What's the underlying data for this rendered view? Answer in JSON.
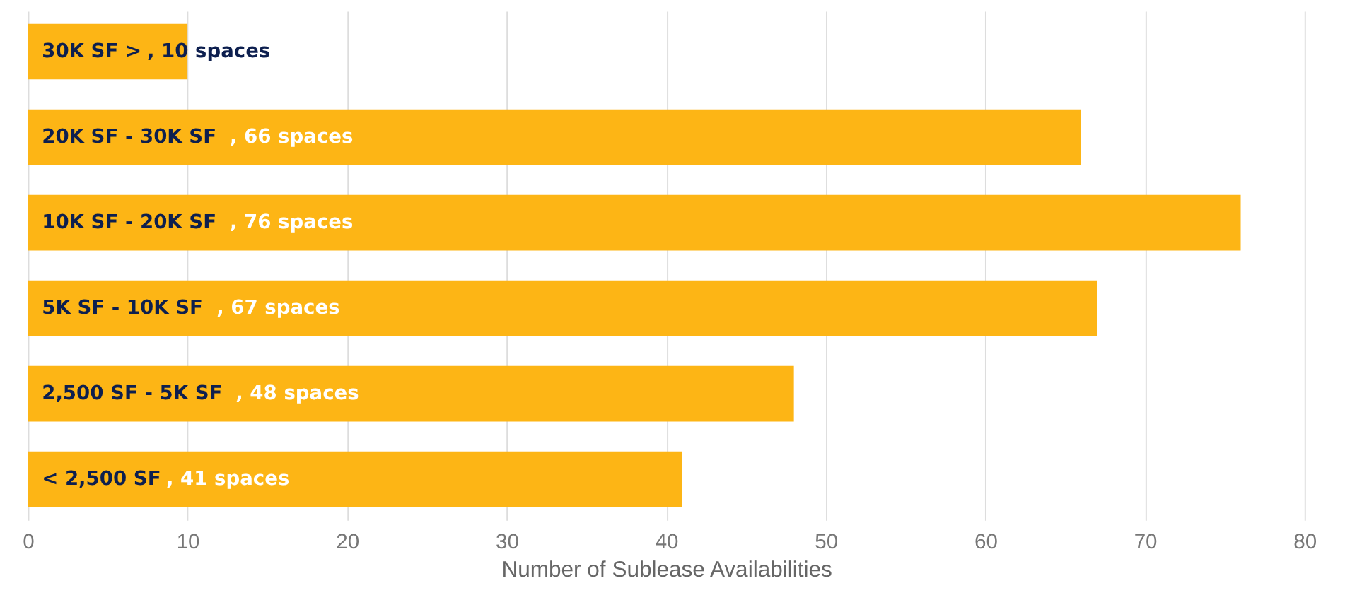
{
  "chart_data": {
    "type": "bar",
    "orientation": "horizontal",
    "xlabel": "Number of Sublease Availabilities",
    "categories": [
      "30K SF >",
      "20K SF - 30K SF",
      "10K SF - 20K SF",
      "5K SF - 10K SF",
      "2,500 SF - 5K SF",
      "< 2,500 SF"
    ],
    "values": [
      10,
      66,
      76,
      67,
      48,
      41
    ],
    "value_labels": [
      ", 10 spaces",
      ", 66 spaces",
      ", 76 spaces",
      ", 67 spaces",
      ", 48 spaces",
      ", 41 spaces"
    ],
    "color": "#fdb515",
    "xlim": [
      0,
      80
    ],
    "xticks": [
      0,
      10,
      20,
      30,
      40,
      50,
      60,
      70,
      80
    ],
    "grid": "x"
  }
}
